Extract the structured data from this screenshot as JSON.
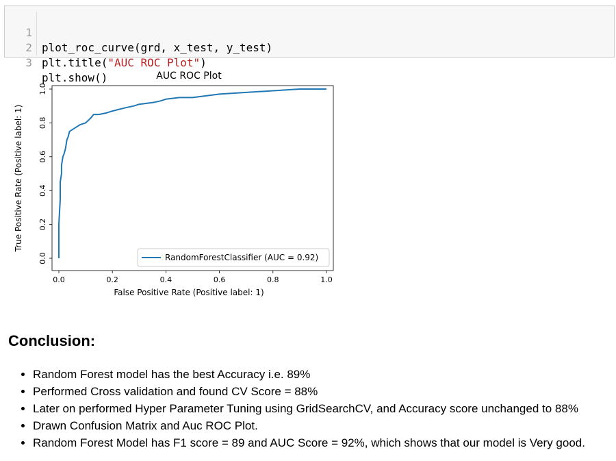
{
  "code_cell": {
    "lines": [
      {
        "number": "1",
        "text": "plot_roc_curve(grd, x_test, y_test)"
      },
      {
        "number": "2",
        "prefix": "plt.title(",
        "string": "\"AUC ROC Plot\"",
        "suffix": ")"
      },
      {
        "number": "3",
        "text": "plt.show()"
      }
    ]
  },
  "chart_data": {
    "type": "line",
    "title": "AUC ROC Plot",
    "xlabel": "False Positive Rate (Positive label: 1)",
    "ylabel": "True Positive Rate (Positive label: 1)",
    "xlim": [
      0.0,
      1.0
    ],
    "ylim": [
      0.0,
      1.0
    ],
    "x_ticks": [
      "0.0",
      "0.2",
      "0.4",
      "0.6",
      "0.8",
      "1.0"
    ],
    "y_ticks": [
      "0.0",
      "0.2",
      "0.4",
      "0.6",
      "0.8",
      "1.0"
    ],
    "grid": false,
    "legend_position": "lower-right",
    "series": [
      {
        "name": "RandomForestClassifier (AUC = 0.92)",
        "color": "#1f77b4",
        "x": [
          0.0,
          0.0,
          0.005,
          0.005,
          0.01,
          0.01,
          0.015,
          0.02,
          0.025,
          0.03,
          0.035,
          0.04,
          0.05,
          0.06,
          0.07,
          0.08,
          0.1,
          0.12,
          0.13,
          0.15,
          0.18,
          0.2,
          0.25,
          0.28,
          0.3,
          0.35,
          0.38,
          0.4,
          0.45,
          0.5,
          0.55,
          0.6,
          0.7,
          0.8,
          0.9,
          1.0
        ],
        "y": [
          0.0,
          0.2,
          0.35,
          0.45,
          0.5,
          0.55,
          0.6,
          0.62,
          0.65,
          0.7,
          0.72,
          0.75,
          0.76,
          0.77,
          0.78,
          0.79,
          0.8,
          0.83,
          0.85,
          0.85,
          0.86,
          0.87,
          0.89,
          0.9,
          0.91,
          0.92,
          0.93,
          0.94,
          0.95,
          0.95,
          0.96,
          0.97,
          0.98,
          0.99,
          1.0,
          1.0
        ]
      }
    ]
  },
  "conclusion": {
    "heading": "Conclusion:",
    "items": [
      "Random Forest model has the best Accuracy i.e. 89%",
      "Performed Cross validation and found CV Score = 88%",
      "Later on performed Hyper Parameter Tuning using GridSearchCV, and Accuracy score unchanged to 88%",
      "Drawn Confusion Matrix and Auc ROC Plot.",
      "Random Forest Model has F1 score = 89 and AUC Score = 92%, which shows that our model is Very good."
    ]
  }
}
